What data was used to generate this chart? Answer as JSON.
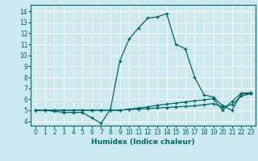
{
  "xlabel": "Humidex (Indice chaleur)",
  "background_color": "#cce9f0",
  "grid_color": "#ffffff",
  "line_color": "#006666",
  "xlim": [
    -0.5,
    23.5
  ],
  "ylim": [
    3.6,
    14.6
  ],
  "xticks": [
    0,
    1,
    2,
    3,
    4,
    5,
    6,
    7,
    8,
    9,
    10,
    11,
    12,
    13,
    14,
    15,
    16,
    17,
    18,
    19,
    20,
    21,
    22,
    23
  ],
  "yticks": [
    4,
    5,
    6,
    7,
    8,
    9,
    10,
    11,
    12,
    13,
    14
  ],
  "series": [
    [
      5.0,
      5.0,
      4.9,
      4.8,
      4.8,
      4.8,
      4.3,
      3.8,
      5.1,
      9.5,
      11.5,
      12.5,
      13.4,
      13.5,
      13.8,
      11.0,
      10.6,
      8.0,
      6.4,
      6.2,
      5.4,
      5.0,
      6.5,
      6.5
    ],
    [
      5.0,
      5.0,
      5.0,
      5.0,
      5.0,
      5.0,
      5.0,
      5.0,
      5.0,
      5.0,
      5.1,
      5.2,
      5.3,
      5.45,
      5.55,
      5.65,
      5.75,
      5.85,
      5.95,
      6.05,
      5.0,
      5.8,
      6.55,
      6.6
    ],
    [
      5.0,
      5.0,
      5.0,
      5.0,
      5.0,
      5.0,
      5.0,
      5.0,
      5.0,
      5.0,
      5.05,
      5.1,
      5.15,
      5.2,
      5.25,
      5.3,
      5.35,
      5.4,
      5.5,
      5.6,
      5.3,
      5.5,
      6.3,
      6.5
    ]
  ],
  "tick_fontsize": 5.5,
  "xlabel_fontsize": 6.5
}
